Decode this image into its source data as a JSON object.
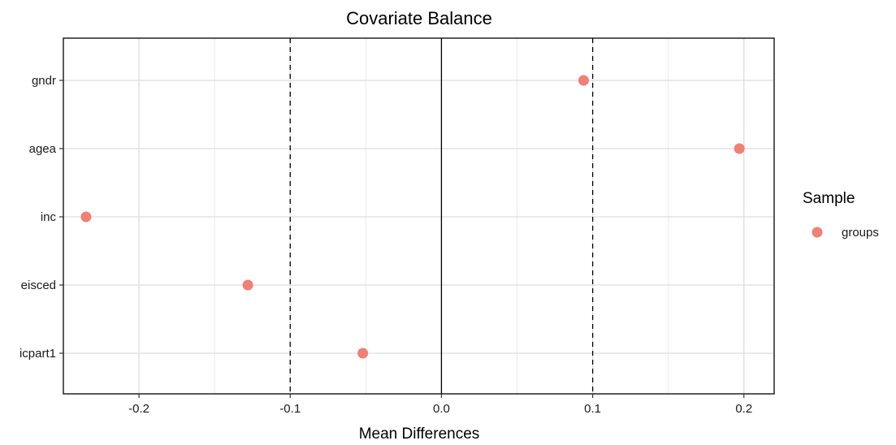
{
  "chart_data": {
    "type": "scatter",
    "title": "Covariate Balance",
    "xlabel": "Mean Differences",
    "ylabel": "",
    "xlim": [
      -0.25,
      0.22
    ],
    "x_ticks": [
      -0.2,
      -0.1,
      0.0,
      0.1,
      0.2
    ],
    "x_tick_labels": [
      "-0.2",
      "-0.1",
      "0.0",
      "0.1",
      "0.2"
    ],
    "categories": [
      "gndr",
      "agea",
      "inc",
      "eisced",
      "icpart1"
    ],
    "series": [
      {
        "name": "groups",
        "color": "#F07F74",
        "points": [
          {
            "category": "gndr",
            "x": 0.094
          },
          {
            "category": "agea",
            "x": 0.197
          },
          {
            "category": "inc",
            "x": -0.235
          },
          {
            "category": "eisced",
            "x": -0.128
          },
          {
            "category": "icpart1",
            "x": -0.052
          }
        ]
      }
    ],
    "reference_lines": {
      "solid": [
        0.0
      ],
      "dashed": [
        -0.1,
        0.1
      ]
    },
    "grid": true,
    "legend": {
      "title": "Sample",
      "position": "right",
      "entries": [
        "groups"
      ]
    }
  }
}
